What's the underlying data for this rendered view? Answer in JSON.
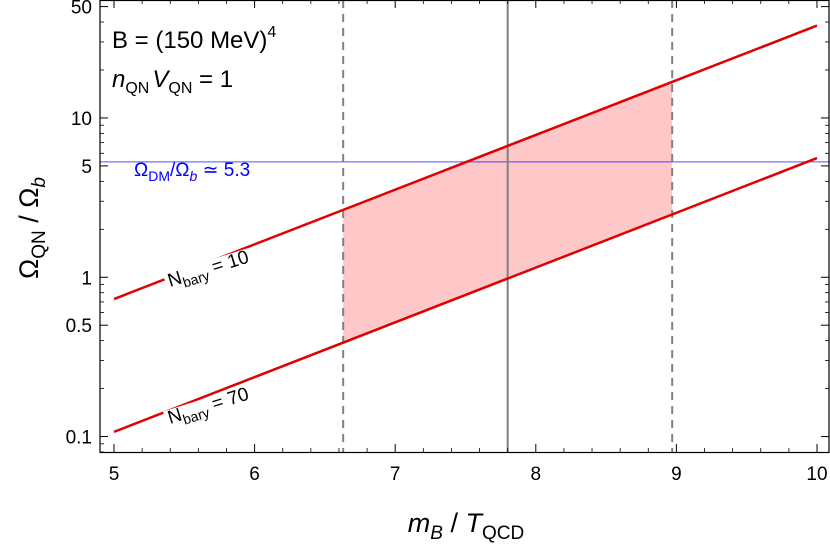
{
  "chart_data": {
    "type": "line",
    "xlabel": {
      "main": "m",
      "main_sub": "B",
      "sep": " / ",
      "t": "T",
      "t_sub": "QCD"
    },
    "ylabel": {
      "a": "Ω",
      "a_sub": "QN",
      "sep": " / ",
      "b": "Ω",
      "b_sub": "b"
    },
    "xlim": [
      5,
      10
    ],
    "ylim": [
      0.08,
      55
    ],
    "yscale": "log",
    "x_ticks": [
      5,
      6,
      7,
      8,
      9,
      10
    ],
    "x_tick_labels": [
      "5",
      "6",
      "7",
      "8",
      "9",
      "10"
    ],
    "y_ticks": [
      0.1,
      0.5,
      1,
      5,
      10,
      50
    ],
    "y_tick_labels": [
      "0.1",
      "0.5",
      "1",
      "5",
      "10",
      "50"
    ],
    "grid": false,
    "annotations": {
      "line1_text": "B = (150 MeV)",
      "line1_sup": "4",
      "line2_n": "n",
      "line2_n_sub": "QN",
      "line2_v": "V",
      "line2_v_sub": "QN",
      "line2_rest": " = 1"
    },
    "series": [
      {
        "name": "N_bary = 10",
        "label_main": "N",
        "label_sub": "bary",
        "label_rest": " = 10",
        "color": "#e00000",
        "x": [
          5,
          10
        ],
        "y": [
          0.73,
          38.0
        ]
      },
      {
        "name": "N_bary = 70",
        "label_main": "N",
        "label_sub": "bary",
        "label_rest": " = 70",
        "color": "#e00000",
        "x": [
          5,
          10
        ],
        "y": [
          0.107,
          5.6
        ]
      }
    ],
    "reference_lines": {
      "horizontal": {
        "y": 5.3,
        "color": "#0000ff",
        "label_a": "Ω",
        "label_a_sub": "DM",
        "label_slash": "/",
        "label_b": "Ω",
        "label_b_sub": "b",
        "label_rest": " ≃ 5.3"
      },
      "vertical_solid": {
        "x": 7.8,
        "color": "#808080"
      },
      "vertical_dashed": [
        {
          "x": 6.63,
          "color": "#808080"
        },
        {
          "x": 8.97,
          "color": "#808080"
        }
      ]
    },
    "shaded_region": {
      "x_from": 6.63,
      "x_to": 8.97,
      "between": [
        "N_bary = 70",
        "N_bary = 10"
      ],
      "color": "#ffc8c8"
    }
  }
}
